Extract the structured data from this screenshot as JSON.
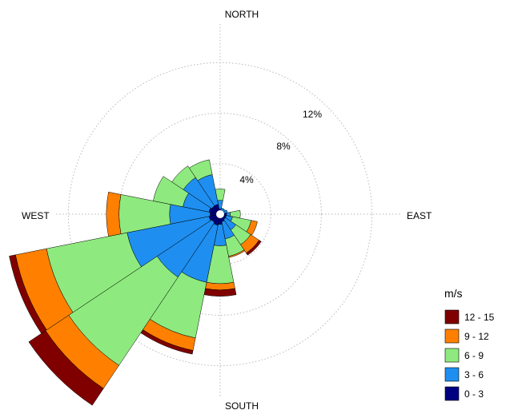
{
  "chart_data": {
    "type": "wind-rose",
    "title": "",
    "directions": [
      "N",
      "NNE",
      "NE",
      "ENE",
      "E",
      "ESE",
      "SE",
      "SSE",
      "S",
      "SSW",
      "SW",
      "WSW",
      "W",
      "WNW",
      "NW",
      "NNW"
    ],
    "direction_labels": {
      "north": "NORTH",
      "east": "EAST",
      "south": "SOUTH",
      "west": "WEST"
    },
    "radial_ticks": [
      {
        "value": 4,
        "label": "4%"
      },
      {
        "value": 8,
        "label": "8%"
      },
      {
        "value": 12,
        "label": "12%"
      }
    ],
    "legend_title": "m/s",
    "bins": [
      {
        "label": "0 - 3",
        "color": "#000080"
      },
      {
        "label": "3 - 6",
        "color": "#1e8ff0"
      },
      {
        "label": "6 - 9",
        "color": "#8eea7e"
      },
      {
        "label": "9 - 12",
        "color": "#ff8000"
      },
      {
        "label": "12 - 15",
        "color": "#800000"
      }
    ],
    "series_cumulative_percent": [
      [
        0.4,
        1.1,
        2.0,
        2.0,
        2.0
      ],
      [
        0.3,
        0.5,
        0.5,
        0.5,
        0.5
      ],
      [
        0.3,
        0.5,
        0.5,
        0.5,
        0.5
      ],
      [
        0.3,
        0.6,
        0.6,
        0.6,
        0.6
      ],
      [
        0.5,
        0.8,
        1.6,
        1.6,
        1.6
      ],
      [
        0.5,
        1.0,
        2.5,
        3.0,
        3.0
      ],
      [
        0.5,
        1.5,
        2.9,
        3.7,
        3.9
      ],
      [
        0.6,
        2.0,
        3.4,
        3.5,
        3.5
      ],
      [
        0.8,
        2.5,
        5.5,
        6.0,
        6.5
      ],
      [
        0.9,
        5.5,
        10.0,
        11.0,
        11.3
      ],
      [
        0.8,
        6.0,
        14.4,
        16.6,
        18.2
      ],
      [
        0.9,
        7.5,
        14.0,
        16.5,
        17.0
      ],
      [
        0.8,
        4.0,
        8.0,
        9.0,
        9.0
      ],
      [
        0.9,
        3.0,
        5.4,
        5.4,
        5.4
      ],
      [
        0.8,
        3.5,
        4.6,
        4.6,
        4.6
      ],
      [
        0.8,
        3.2,
        4.4,
        4.4,
        4.4
      ]
    ]
  }
}
